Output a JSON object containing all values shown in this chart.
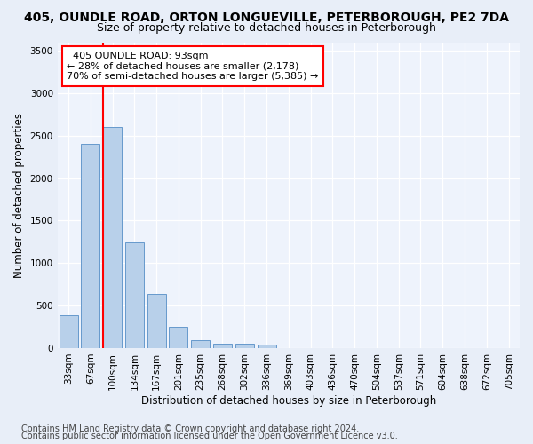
{
  "title1": "405, OUNDLE ROAD, ORTON LONGUEVILLE, PETERBOROUGH, PE2 7DA",
  "title2": "Size of property relative to detached houses in Peterborough",
  "xlabel": "Distribution of detached houses by size in Peterborough",
  "ylabel": "Number of detached properties",
  "categories": [
    "33sqm",
    "67sqm",
    "100sqm",
    "134sqm",
    "167sqm",
    "201sqm",
    "235sqm",
    "268sqm",
    "302sqm",
    "336sqm",
    "369sqm",
    "403sqm",
    "436sqm",
    "470sqm",
    "504sqm",
    "537sqm",
    "571sqm",
    "604sqm",
    "638sqm",
    "672sqm",
    "705sqm"
  ],
  "values": [
    390,
    2400,
    2600,
    1240,
    640,
    255,
    90,
    55,
    55,
    40,
    0,
    0,
    0,
    0,
    0,
    0,
    0,
    0,
    0,
    0,
    0
  ],
  "bar_color": "#b8d0ea",
  "bar_edge_color": "#6699cc",
  "vline_color": "red",
  "vline_x_index": 1.57,
  "annotation_text": "  405 OUNDLE ROAD: 93sqm\n← 28% of detached houses are smaller (2,178)\n70% of semi-detached houses are larger (5,385) →",
  "annotation_box_color": "white",
  "annotation_box_edge_color": "red",
  "ylim": [
    0,
    3600
  ],
  "yticks": [
    0,
    500,
    1000,
    1500,
    2000,
    2500,
    3000,
    3500
  ],
  "footer1": "Contains HM Land Registry data © Crown copyright and database right 2024.",
  "footer2": "Contains public sector information licensed under the Open Government Licence v3.0.",
  "bg_color": "#e8eef8",
  "plot_bg_color": "#eef3fc",
  "grid_color": "#ffffff",
  "title1_fontsize": 10,
  "title2_fontsize": 9,
  "xlabel_fontsize": 8.5,
  "ylabel_fontsize": 8.5,
  "tick_fontsize": 7.5,
  "annotation_fontsize": 8,
  "footer_fontsize": 7
}
